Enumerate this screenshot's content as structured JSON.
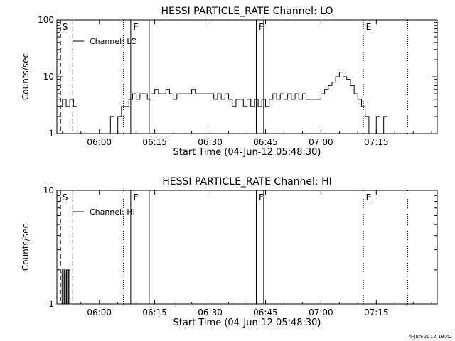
{
  "chart_data": [
    {
      "type": "line",
      "title": "HESSI PARTICLE_RATE Channel: LO",
      "xlabel": "Start Time (04-Jun-12 05:48:30)",
      "ylabel": "Counts/sec",
      "x_tick_labels": [
        "06:00",
        "06:15",
        "06:30",
        "06:45",
        "07:00",
        "07:15"
      ],
      "x_tick_minutes": [
        360,
        375,
        390,
        405,
        420,
        435
      ],
      "xlim_minutes": [
        348.5,
        451.5
      ],
      "y_scale": "log",
      "ylim": [
        1,
        100
      ],
      "y_tick_labels": [
        "1",
        "10",
        "100"
      ],
      "legend": "Channel: LO",
      "legend_position": "top-left",
      "series": [
        {
          "name": "Channel: LO",
          "x": [
            349,
            350,
            351,
            352,
            353,
            354,
            355,
            356,
            357,
            358,
            359,
            360,
            361,
            362,
            363,
            364,
            365,
            366,
            367,
            368,
            369,
            370,
            371,
            372,
            373,
            374,
            375,
            376,
            377,
            378,
            379,
            380,
            381,
            382,
            383,
            384,
            385,
            386,
            387,
            388,
            389,
            390,
            391,
            392,
            393,
            394,
            395,
            396,
            397,
            398,
            399,
            400,
            401,
            402,
            403,
            404,
            405,
            406,
            407,
            408,
            409,
            410,
            411,
            412,
            413,
            414,
            415,
            416,
            417,
            418,
            419,
            420,
            421,
            422,
            423,
            424,
            425,
            426,
            427,
            428,
            429,
            430,
            431,
            432,
            433,
            434,
            435,
            436,
            437
          ],
          "y": [
            3,
            4,
            3,
            4,
            3,
            1,
            1,
            1,
            1,
            1,
            1,
            1,
            1,
            1,
            2,
            1,
            2,
            3,
            3,
            4,
            5,
            4,
            5,
            5,
            4,
            5,
            6,
            5,
            5,
            6,
            5,
            4,
            5,
            5,
            5,
            5,
            6,
            5,
            5,
            5,
            5,
            5,
            4,
            5,
            4,
            5,
            4,
            3,
            4,
            4,
            3,
            4,
            3,
            4,
            3,
            4,
            3,
            4,
            5,
            4,
            5,
            4,
            5,
            4,
            5,
            4,
            5,
            4,
            4,
            4,
            4,
            5,
            6,
            7,
            8,
            10,
            12,
            10,
            9,
            7,
            5,
            4,
            3,
            2,
            1,
            1,
            2,
            1,
            2
          ]
        }
      ],
      "vlines_dotted_minutes": [
        366.5,
        431.5,
        443.5
      ],
      "vlines_solid_minutes": [
        368.5,
        373.5,
        402.5,
        404.5
      ],
      "vlines_dashed_minutes": [
        349.5,
        352.8
      ],
      "flag_labels": [
        {
          "text": "S",
          "minute": 349.6
        },
        {
          "text": "F",
          "minute": 368.8
        },
        {
          "text": "F",
          "minute": 402.8
        },
        {
          "text": "E",
          "minute": 431.8
        }
      ]
    },
    {
      "type": "line",
      "title": "HESSI PARTICLE_RATE Channel: HI",
      "xlabel": "Start Time (04-Jun-12 05:48:30)",
      "ylabel": "Counts/sec",
      "x_tick_labels": [
        "06:00",
        "06:15",
        "06:30",
        "06:45",
        "07:00",
        "07:15"
      ],
      "x_tick_minutes": [
        360,
        375,
        390,
        405,
        420,
        435
      ],
      "xlim_minutes": [
        348.5,
        451.5
      ],
      "y_scale": "log",
      "ylim": [
        1,
        10
      ],
      "y_tick_labels": [
        "1",
        "10"
      ],
      "legend": "Channel: HI",
      "legend_position": "top-left",
      "series": [
        {
          "name": "Channel: HI",
          "x": [
            349.6,
            349.9,
            350.2,
            350.5,
            350.8,
            351.1,
            351.4,
            351.7,
            352.0
          ],
          "y": [
            1,
            2,
            1,
            2,
            1,
            2,
            1,
            2,
            1
          ]
        }
      ],
      "vlines_dotted_minutes": [
        366.5,
        431.5,
        443.5
      ],
      "vlines_solid_minutes": [
        368.5,
        373.5,
        402.5,
        404.5
      ],
      "vlines_dashed_minutes": [
        349.5,
        352.8
      ],
      "flag_labels": [
        {
          "text": "S",
          "minute": 349.6
        },
        {
          "text": "F",
          "minute": 368.8
        },
        {
          "text": "F",
          "minute": 402.8
        },
        {
          "text": "E",
          "minute": 431.8
        }
      ]
    }
  ],
  "timestamp": "4-Jun-2012 19:42"
}
